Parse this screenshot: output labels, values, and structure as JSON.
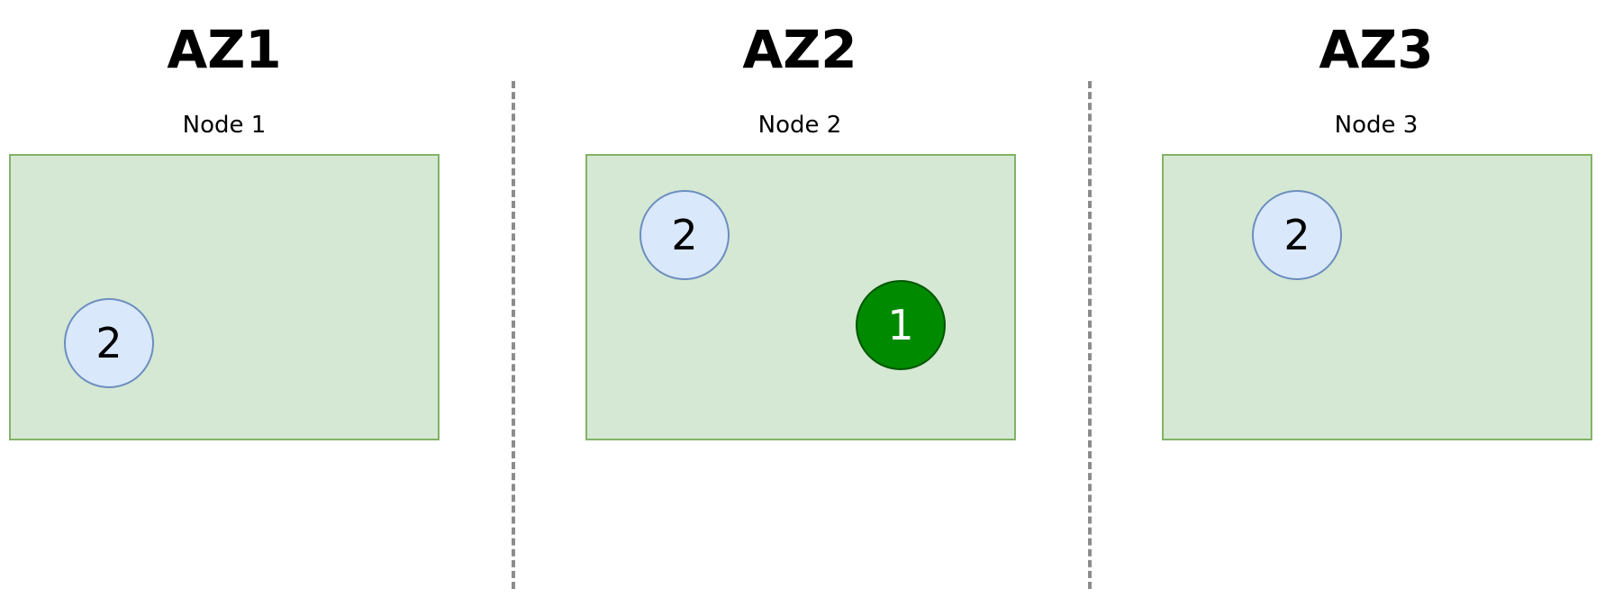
{
  "zones": [
    {
      "title": "AZ1",
      "node": {
        "label": "Node 1",
        "pods": [
          {
            "value": "2",
            "style": "light"
          }
        ]
      }
    },
    {
      "title": "AZ2",
      "node": {
        "label": "Node 2",
        "pods": [
          {
            "value": "2",
            "style": "light"
          },
          {
            "value": "1",
            "style": "dark"
          }
        ]
      }
    },
    {
      "title": "AZ3",
      "node": {
        "label": "Node 3",
        "pods": [
          {
            "value": "2",
            "style": "light"
          }
        ]
      }
    }
  ],
  "colors": {
    "node_fill": "#d5e8d4",
    "node_border": "#82b366",
    "pod_light_fill": "#dae8fc",
    "pod_light_border": "#6c8ebf",
    "pod_dark_fill": "#008a00",
    "pod_dark_border": "#005700",
    "divider": "#8c8c8c"
  }
}
